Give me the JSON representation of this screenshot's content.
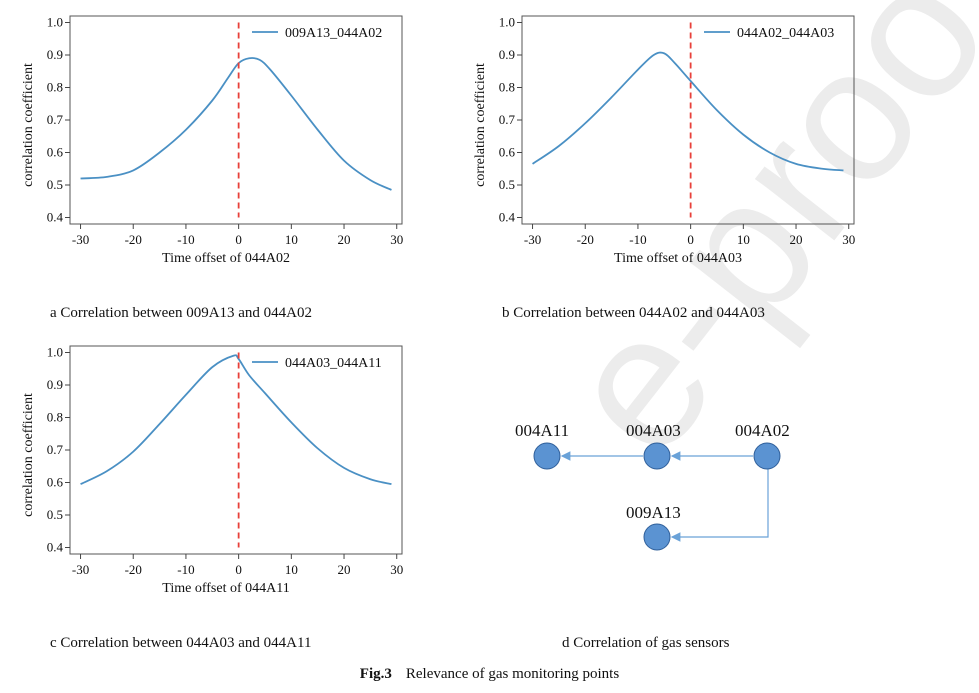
{
  "chart_data": [
    {
      "type": "line",
      "series_name": "009A13_044A02",
      "xlabel": "Time offset of 044A02",
      "ylabel": "correlation coefficient",
      "x": [
        -30,
        -25,
        -20,
        -15,
        -10,
        -5,
        -2,
        0,
        2,
        4,
        6,
        10,
        15,
        20,
        25,
        29
      ],
      "y": [
        0.52,
        0.525,
        0.545,
        0.6,
        0.67,
        0.76,
        0.83,
        0.875,
        0.89,
        0.885,
        0.855,
        0.775,
        0.67,
        0.575,
        0.515,
        0.485
      ],
      "xlim": [
        -32,
        31
      ],
      "ylim": [
        0.38,
        1.02
      ],
      "xticks": [
        -30,
        -20,
        -10,
        0,
        10,
        20,
        30
      ],
      "xtick_labels": [
        "-30",
        "-20",
        "-10",
        "0",
        "10",
        "20",
        "30"
      ],
      "yticks": [
        0.4,
        0.5,
        0.6,
        0.7,
        0.8,
        0.9,
        1.0
      ],
      "ytick_labels": [
        "0.4",
        "0.5",
        "0.6",
        "0.7",
        "0.8",
        "0.9",
        "1.0"
      ],
      "vline_x": 0,
      "legend": "top-right",
      "caption": "a Correlation between 009A13 and 044A02"
    },
    {
      "type": "line",
      "series_name": "044A02_044A03",
      "xlabel": "Time offset of 044A03",
      "ylabel": "correlation coefficient",
      "x": [
        -30,
        -25,
        -20,
        -15,
        -10,
        -7,
        -5,
        -3,
        0,
        5,
        10,
        15,
        20,
        25,
        29
      ],
      "y": [
        0.565,
        0.62,
        0.69,
        0.77,
        0.855,
        0.9,
        0.905,
        0.875,
        0.82,
        0.73,
        0.655,
        0.6,
        0.565,
        0.55,
        0.545
      ],
      "xlim": [
        -32,
        31
      ],
      "ylim": [
        0.38,
        1.02
      ],
      "xticks": [
        -30,
        -20,
        -10,
        0,
        10,
        20,
        30
      ],
      "xtick_labels": [
        "-30",
        "-20",
        "-10",
        "0",
        "10",
        "20",
        "30"
      ],
      "yticks": [
        0.4,
        0.5,
        0.6,
        0.7,
        0.8,
        0.9,
        1.0
      ],
      "ytick_labels": [
        "0.4",
        "0.5",
        "0.6",
        "0.7",
        "0.8",
        "0.9",
        "1.0"
      ],
      "vline_x": 0,
      "legend": "top-right",
      "caption": "b Correlation between 044A02 and 044A03"
    },
    {
      "type": "line",
      "series_name": "044A03_044A11",
      "xlabel": "Time offset of 044A11",
      "ylabel": "correlation coefficient",
      "x": [
        -30,
        -25,
        -20,
        -15,
        -10,
        -5,
        -1,
        0,
        2,
        5,
        10,
        15,
        20,
        25,
        29
      ],
      "y": [
        0.595,
        0.635,
        0.695,
        0.78,
        0.87,
        0.955,
        0.99,
        0.98,
        0.93,
        0.875,
        0.785,
        0.705,
        0.645,
        0.61,
        0.595
      ],
      "xlim": [
        -32,
        31
      ],
      "ylim": [
        0.38,
        1.02
      ],
      "xticks": [
        -30,
        -20,
        -10,
        0,
        10,
        20,
        30
      ],
      "xtick_labels": [
        "-30",
        "-20",
        "-10",
        "0",
        "10",
        "20",
        "30"
      ],
      "yticks": [
        0.4,
        0.5,
        0.6,
        0.7,
        0.8,
        0.9,
        1.0
      ],
      "ytick_labels": [
        "0.4",
        "0.5",
        "0.6",
        "0.7",
        "0.8",
        "0.9",
        "1.0"
      ],
      "vline_x": 0,
      "legend": "top-right",
      "caption": "c Correlation between 044A03 and 044A11"
    }
  ],
  "diagram": {
    "nodes": [
      "004A11",
      "004A03",
      "004A02",
      "009A13"
    ],
    "edges": [
      {
        "from": "004A02",
        "to": "004A03"
      },
      {
        "from": "004A03",
        "to": "004A11"
      },
      {
        "from": "004A02",
        "to": "009A13"
      }
    ],
    "caption": "d Correlation of gas sensors"
  },
  "figure": {
    "label": "Fig.3",
    "title": "Relevance of gas monitoring points"
  },
  "colors": {
    "line": "#4a90c4",
    "vline": "#e8403a",
    "node_fill": "#5b93d2",
    "node_stroke": "#2f5f9a",
    "edge": "#6aa2d8"
  },
  "watermark": "e-proof"
}
